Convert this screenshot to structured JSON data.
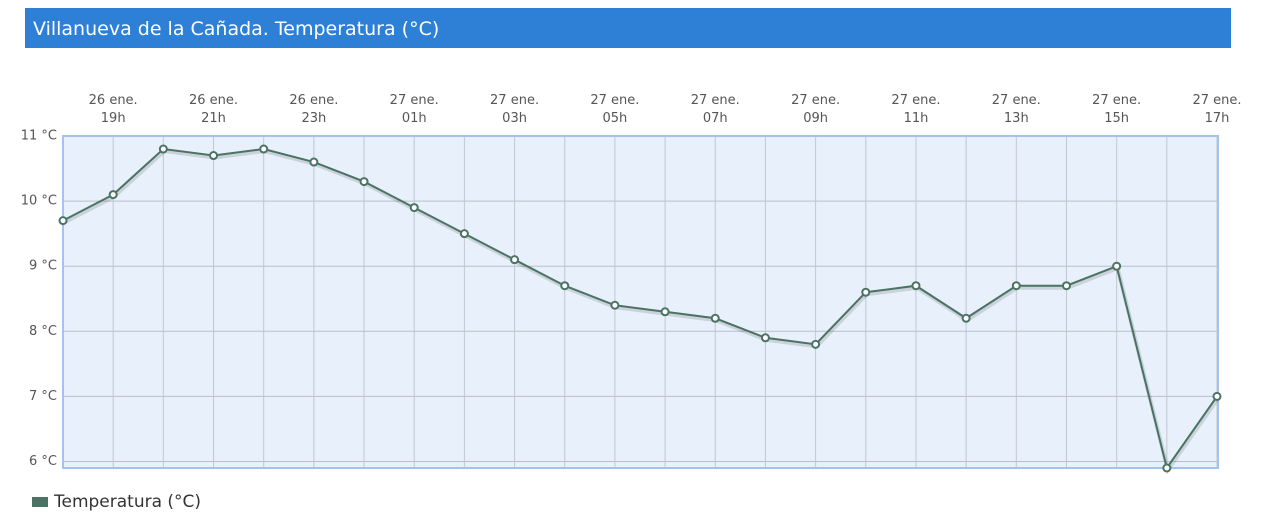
{
  "chart_data": {
    "type": "line",
    "title": "Villanueva de la Cañada. Temperatura (°C)",
    "categories": [
      null,
      "26 ene.\n19h",
      null,
      "26 ene.\n21h",
      null,
      "26 ene.\n23h",
      null,
      "27 ene.\n01h",
      null,
      "27 ene.\n03h",
      null,
      "27 ene.\n05h",
      null,
      "27 ene.\n07h",
      null,
      "27 ene.\n09h",
      null,
      "27 ene.\n11h",
      null,
      "27 ene.\n13h",
      null,
      "27 ene.\n15h",
      null,
      "27 ene.\n17h"
    ],
    "series": [
      {
        "name": "Temperatura (°C)",
        "color": "#4a7363",
        "values": [
          9.7,
          10.1,
          10.8,
          10.7,
          10.8,
          10.6,
          10.3,
          9.9,
          9.5,
          9.1,
          8.7,
          8.4,
          8.3,
          8.2,
          7.9,
          7.8,
          8.6,
          8.7,
          8.2,
          8.7,
          8.7,
          9.0,
          5.9,
          7.0
        ]
      }
    ],
    "ylim": [
      5.9,
      11
    ],
    "yticks": [
      {
        "value": 6,
        "label": "6 °C"
      },
      {
        "value": 7,
        "label": "7 °C"
      },
      {
        "value": 8,
        "label": "8 °C"
      },
      {
        "value": 9,
        "label": "9 °C"
      },
      {
        "value": 10,
        "label": "10 °C"
      },
      {
        "value": 11,
        "label": "11 °C"
      }
    ],
    "grid": true
  }
}
